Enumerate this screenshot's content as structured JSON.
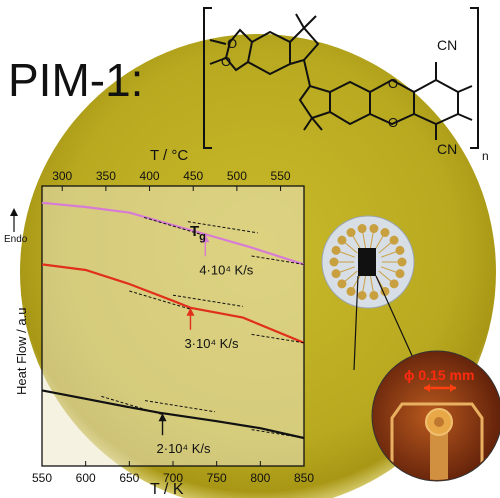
{
  "compound": {
    "name": "PIM-1:",
    "substituents": [
      "CN",
      "CN"
    ],
    "repeat_subscript": "n"
  },
  "inset": {
    "diameter_label": "ϕ 0.15 mm"
  },
  "chart_data": {
    "type": "line",
    "xlabel": "T / K",
    "x2label": "T / °C",
    "ylabel": "Heat Flow / a.u",
    "endo_label": "Endo",
    "xlim": [
      550,
      850
    ],
    "x_ticks": [
      "550",
      "600",
      "650",
      "700",
      "750",
      "800",
      "850"
    ],
    "x2_ticks": [
      "300",
      "350",
      "400",
      "450",
      "500",
      "550"
    ],
    "x2_tick_values": [
      300,
      350,
      400,
      450,
      500,
      550
    ],
    "tg_label": "Tg",
    "series": [
      {
        "name": "4·10⁴ K/s",
        "color": "#d77bd4",
        "points": [
          [
            550,
            0.94
          ],
          [
            600,
            0.925
          ],
          [
            650,
            0.905
          ],
          [
            700,
            0.86
          ],
          [
            740,
            0.825
          ],
          [
            790,
            0.78
          ],
          [
            850,
            0.72
          ]
        ],
        "tg": 737
      },
      {
        "name": "3·10⁴ K/s",
        "color": "#e0301c",
        "points": [
          [
            550,
            0.72
          ],
          [
            600,
            0.7
          ],
          [
            650,
            0.65
          ],
          [
            700,
            0.59
          ],
          [
            720,
            0.565
          ],
          [
            780,
            0.53
          ],
          [
            850,
            0.44
          ]
        ],
        "tg": 720
      },
      {
        "name": "2·10⁴ K/s",
        "color": "#111111",
        "points": [
          [
            550,
            0.27
          ],
          [
            600,
            0.24
          ],
          [
            650,
            0.21
          ],
          [
            685,
            0.19
          ],
          [
            750,
            0.16
          ],
          [
            800,
            0.135
          ],
          [
            850,
            0.1
          ]
        ],
        "tg": 688
      }
    ]
  }
}
